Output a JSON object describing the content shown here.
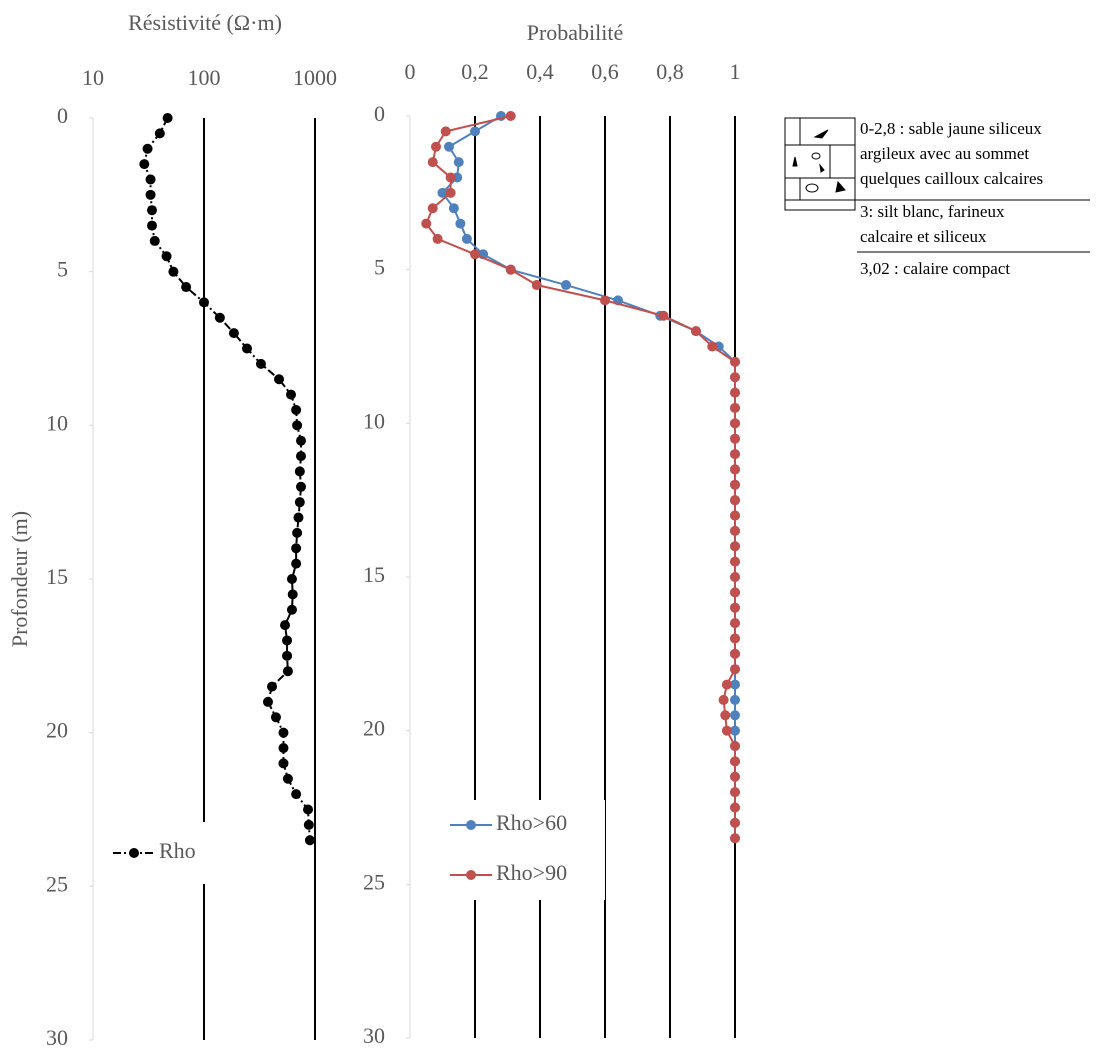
{
  "chart_data": [
    {
      "type": "line",
      "title": "Résistivité (Ω·m)",
      "ylabel": "Profondeur (m)",
      "y": [
        0,
        0.5,
        1,
        1.5,
        2,
        2.5,
        3,
        3.5,
        4,
        4.5,
        5,
        5.5,
        6,
        6.5,
        7,
        7.5,
        8,
        8.5,
        9,
        9.5,
        10,
        10.5,
        11,
        11.5,
        12,
        12.5,
        13,
        13.5,
        14,
        14.5,
        15,
        15.5,
        16,
        16.5,
        17,
        17.5,
        18,
        18.5,
        19,
        19.5,
        20,
        20.5,
        21,
        21.5,
        22,
        22.5,
        23,
        23.5
      ],
      "series": [
        {
          "name": "Rho",
          "color": "#000000",
          "line_style": "dashdot",
          "values": [
            47,
            40,
            31,
            29,
            33,
            33,
            34,
            34,
            36,
            46,
            53,
            69,
            100,
            139,
            186,
            244,
            326,
            474,
            608,
            676,
            690,
            748,
            748,
            730,
            748,
            730,
            710,
            690,
            676,
            676,
            620,
            630,
            620,
            537,
            560,
            560,
            570,
            410,
            377,
            445,
            520,
            520,
            520,
            570,
            676,
            865,
            880,
            900
          ]
        }
      ],
      "xlim": [
        10,
        1000
      ],
      "xticks": [
        10,
        100,
        1000
      ],
      "x_log": true,
      "ylim": [
        0,
        30
      ],
      "yticks": [
        0,
        5,
        10,
        15,
        20,
        25,
        30
      ],
      "y_inverted": true,
      "grid": true,
      "legend": "lower-left"
    },
    {
      "type": "line",
      "title": "Probabilité",
      "y": [
        0,
        0.5,
        1,
        1.5,
        2,
        2.5,
        3,
        3.5,
        4,
        4.5,
        5,
        5.5,
        6,
        6.5,
        7,
        7.5,
        8,
        8.5,
        9,
        9.5,
        10,
        10.5,
        11,
        11.5,
        12,
        12.5,
        13,
        13.5,
        14,
        14.5,
        15,
        15.5,
        16,
        16.5,
        17,
        17.5,
        18,
        18.5,
        19,
        19.5,
        20,
        20.5,
        21,
        21.5,
        22,
        22.5,
        23,
        23.5
      ],
      "series": [
        {
          "name": "Rho>60",
          "color": "#4f81bd",
          "line_style": "solid",
          "values": [
            0.28,
            0.2,
            0.12,
            0.15,
            0.145,
            0.1,
            0.135,
            0.155,
            0.175,
            0.225,
            0.31,
            0.48,
            0.64,
            0.77,
            0.88,
            0.95,
            1,
            1,
            1,
            1,
            1,
            1,
            1,
            1,
            1,
            1,
            1,
            1,
            1,
            1,
            1,
            1,
            1,
            1,
            1,
            1,
            1,
            1,
            1,
            1,
            1,
            1,
            1,
            1,
            1,
            1,
            1,
            1
          ]
        },
        {
          "name": "Rho>90",
          "color": "#c0504d",
          "line_style": "solid",
          "values": [
            0.31,
            0.11,
            0.08,
            0.07,
            0.125,
            0.125,
            0.07,
            0.05,
            0.085,
            0.2,
            0.31,
            0.39,
            0.6,
            0.78,
            0.88,
            0.93,
            1,
            1,
            1,
            1,
            1,
            1,
            1,
            1,
            1,
            1,
            1,
            1,
            1,
            1,
            1,
            1,
            1,
            1,
            1,
            1,
            1,
            0.975,
            0.965,
            0.97,
            0.975,
            1,
            1,
            1,
            1,
            1,
            1,
            1
          ]
        }
      ],
      "xlim": [
        0,
        1
      ],
      "xticks": [
        0,
        {
          "value": 0.2,
          "label": "0,2"
        },
        {
          "value": 0.4,
          "label": "0,4"
        },
        {
          "value": 0.6,
          "label": "0,6"
        },
        {
          "value": 0.8,
          "label": "0,8"
        },
        1
      ],
      "ylim": [
        0,
        30
      ],
      "yticks": [
        0,
        5,
        10,
        15,
        20,
        25,
        30
      ],
      "y_inverted": true,
      "grid": true,
      "legend": "lower-left"
    }
  ],
  "stratigraphy": [
    {
      "lines": [
        "0-2,8 : sable jaune siliceux",
        "argileux avec au sommet",
        "quelques cailloux calcaires"
      ]
    },
    {
      "lines": [
        "3: silt blanc, farineux",
        "calcaire et siliceux"
      ]
    },
    {
      "lines": [
        "3,02 : calaire compact"
      ]
    }
  ]
}
